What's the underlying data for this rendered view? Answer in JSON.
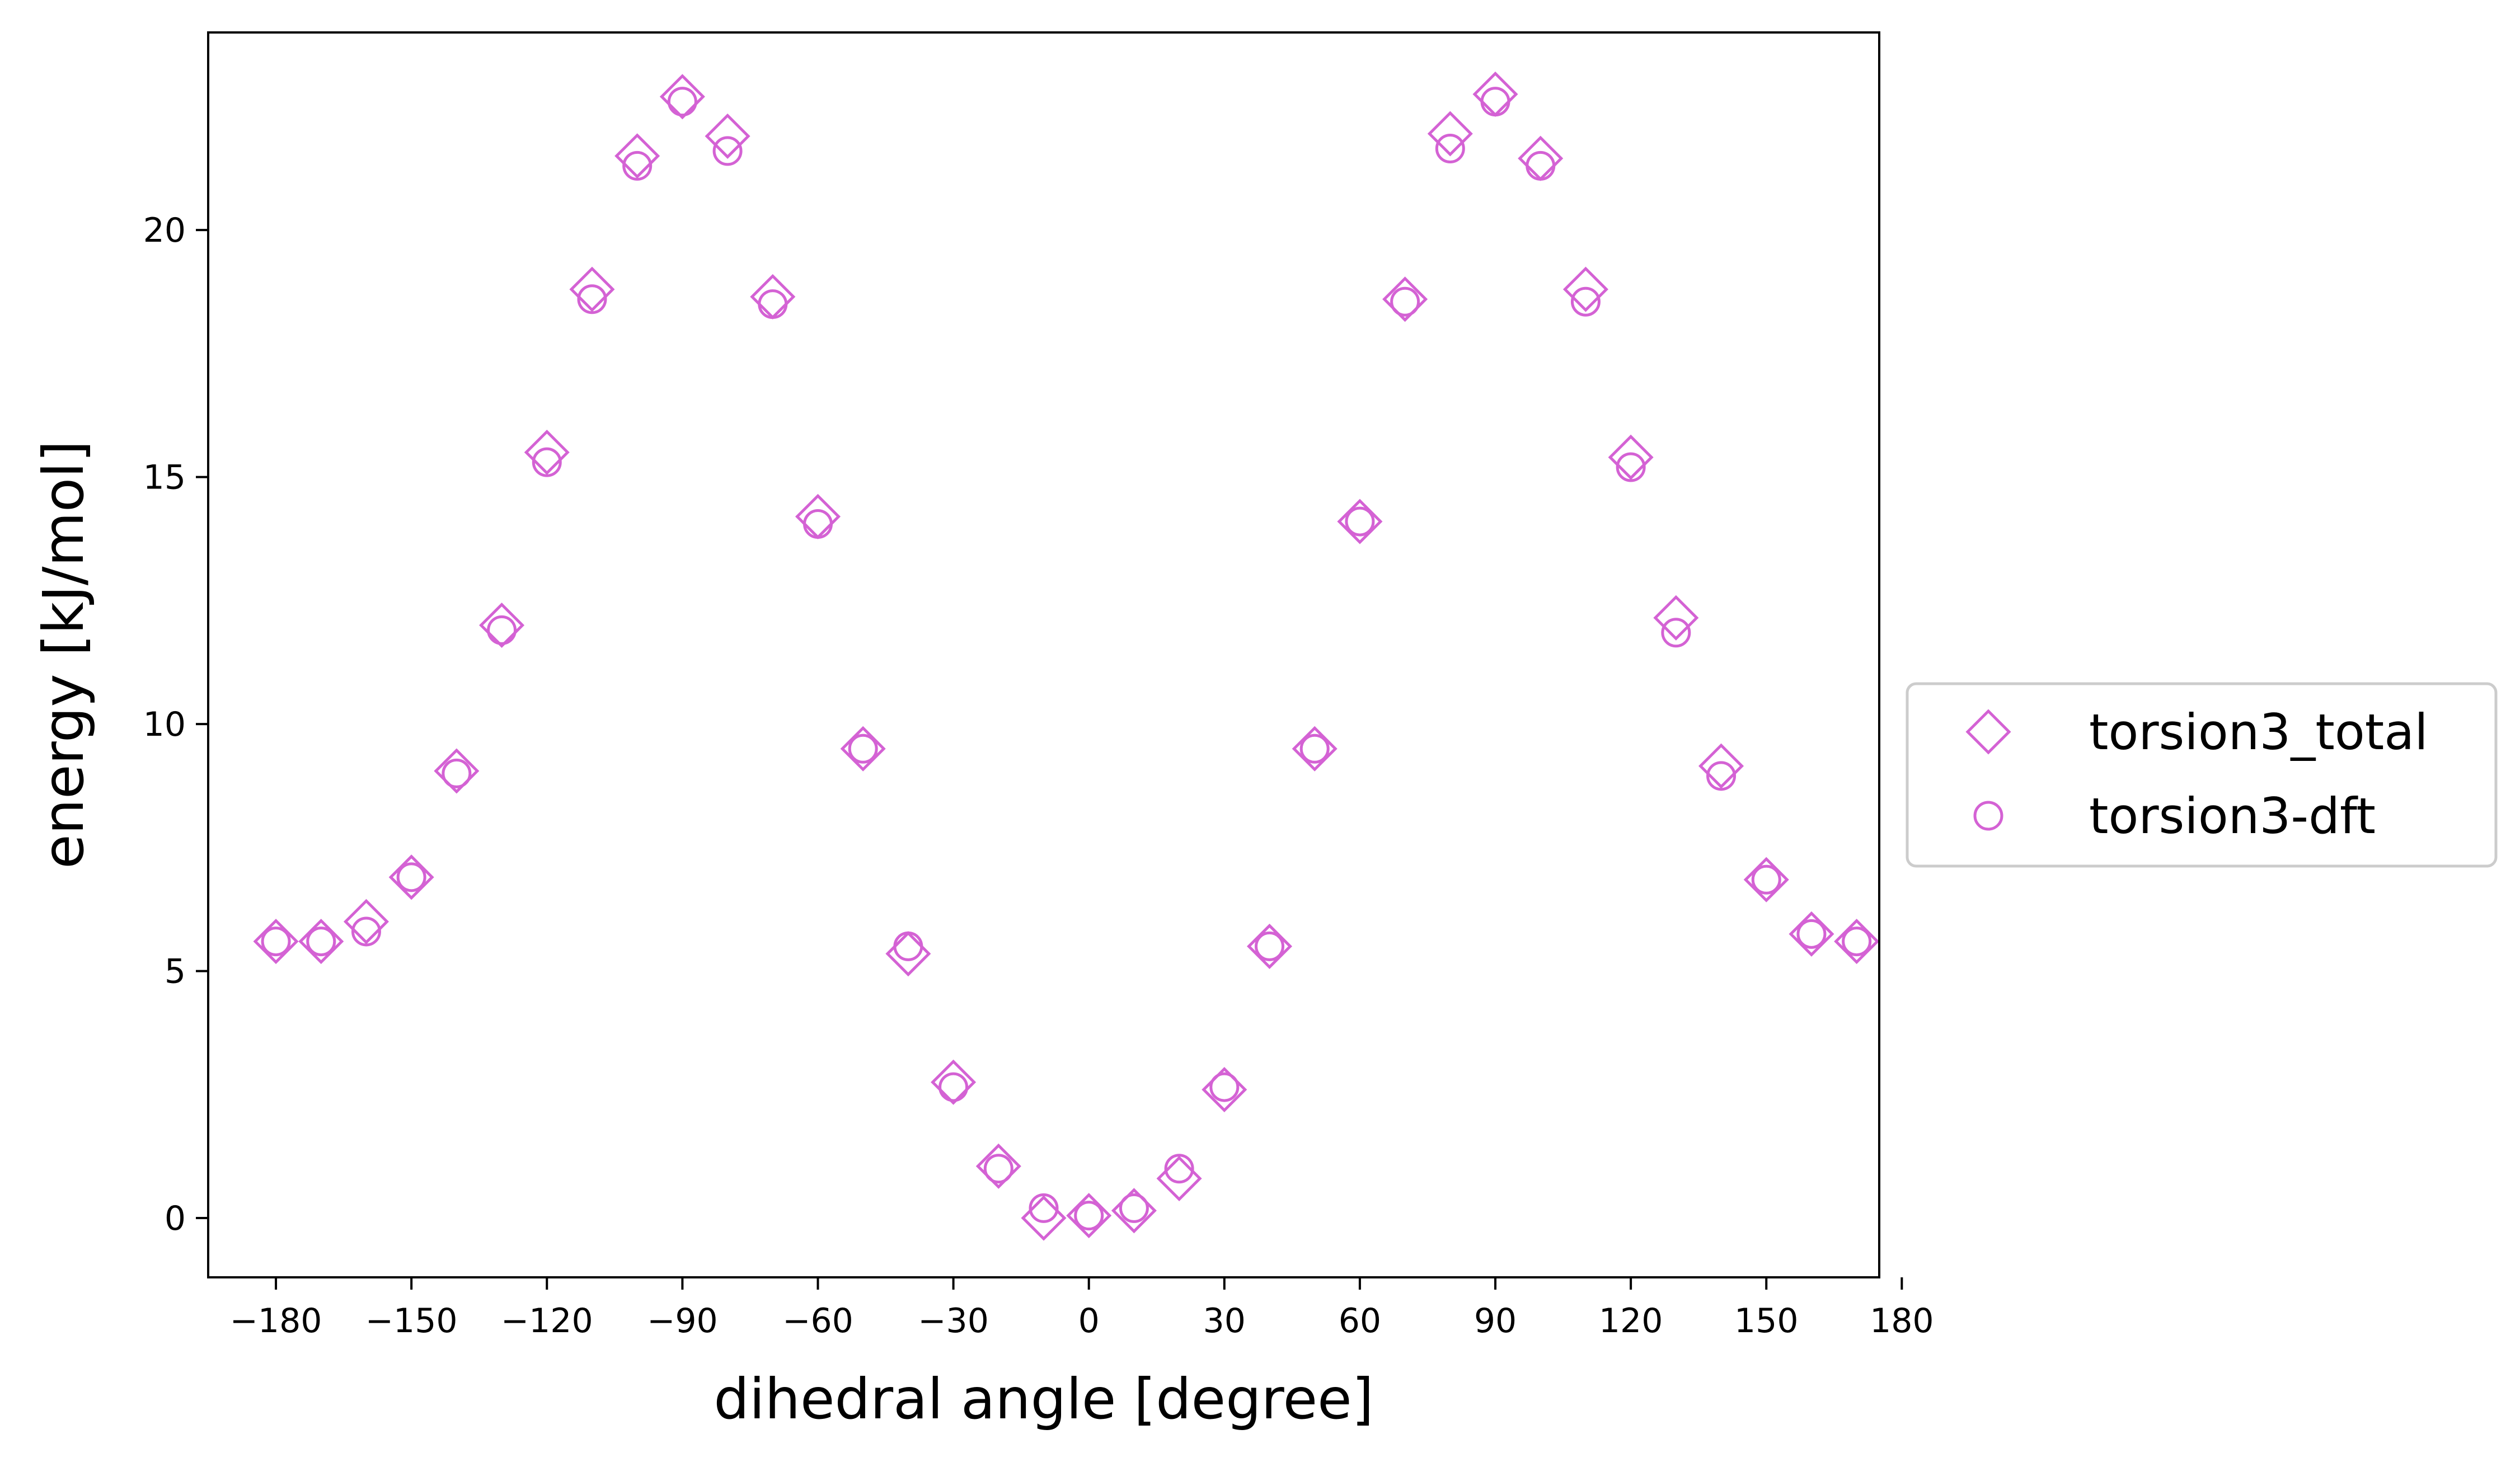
{
  "chart_data": {
    "type": "scatter",
    "title": "",
    "xlabel": "dihedral angle [degree]",
    "ylabel": "energy [kJ/mol]",
    "xlim": [
      -195,
      175
    ],
    "ylim": [
      -1.2,
      24
    ],
    "xticks": [
      -180,
      -150,
      -120,
      -90,
      -60,
      -30,
      0,
      30,
      60,
      90,
      120,
      150,
      180
    ],
    "xtick_labels": [
      "−180",
      "−150",
      "−120",
      "−90",
      "−60",
      "−30",
      "0",
      "30",
      "60",
      "90",
      "120",
      "150",
      "180"
    ],
    "yticks": [
      0,
      5,
      10,
      15,
      20
    ],
    "ytick_labels": [
      "0",
      "5",
      "10",
      "15",
      "20"
    ],
    "grid": false,
    "legend_position": "outside-right",
    "x": [
      -180,
      -170,
      -160,
      -150,
      -140,
      -130,
      -120,
      -110,
      -100,
      -90,
      -80,
      -70,
      -60,
      -50,
      -40,
      -30,
      -20,
      -10,
      0,
      10,
      20,
      30,
      40,
      50,
      60,
      70,
      80,
      90,
      100,
      110,
      120,
      130,
      140,
      150,
      160,
      170
    ],
    "series": [
      {
        "name": "torsion3_total",
        "marker": "diamond",
        "color": "#d462d4",
        "values": [
          5.6,
          5.6,
          6.0,
          6.9,
          9.05,
          12.0,
          15.5,
          18.8,
          21.5,
          22.7,
          21.9,
          18.65,
          14.2,
          9.5,
          5.35,
          2.75,
          1.05,
          0.0,
          0.05,
          0.15,
          0.8,
          2.6,
          5.5,
          9.5,
          14.1,
          18.6,
          21.95,
          22.75,
          21.45,
          18.8,
          15.4,
          12.15,
          9.15,
          6.85,
          5.75,
          5.6
        ]
      },
      {
        "name": "torsion3-dft",
        "marker": "circle",
        "color": "#d462d4",
        "values": [
          5.6,
          5.6,
          5.8,
          6.9,
          9.0,
          11.9,
          15.3,
          18.6,
          21.3,
          22.6,
          21.6,
          18.5,
          14.05,
          9.5,
          5.5,
          2.65,
          1.0,
          0.2,
          0.05,
          0.2,
          1.0,
          2.65,
          5.5,
          9.5,
          14.1,
          18.55,
          21.65,
          22.6,
          21.3,
          18.55,
          15.2,
          11.85,
          8.95,
          6.85,
          5.75,
          5.6
        ]
      }
    ]
  }
}
